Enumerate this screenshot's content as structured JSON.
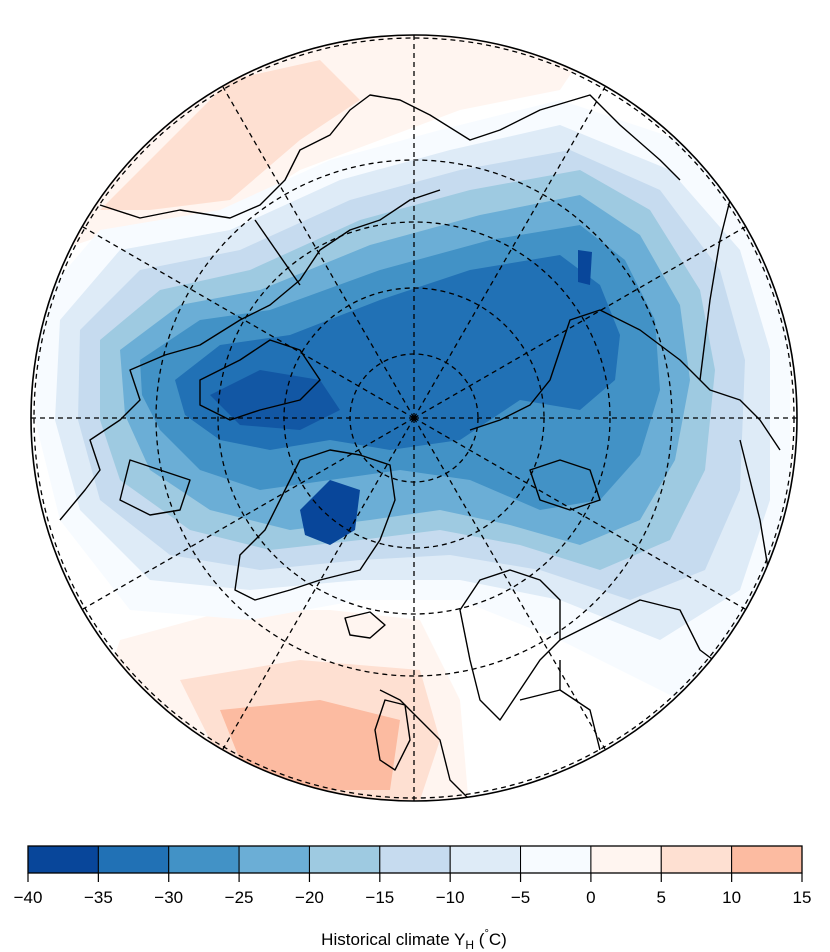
{
  "figure": {
    "projection": "north-polar-stereographic",
    "graticule": "dashed",
    "colorbar": {
      "title_main": "Historical climate Y",
      "title_sub": "H",
      "title_open": " (",
      "title_degree": "°",
      "title_unit": "C)",
      "ticks": [
        "−40",
        "−35",
        "−30",
        "−25",
        "−20",
        "−15",
        "−10",
        "−5",
        "0",
        "5",
        "10",
        "15"
      ],
      "bins": [
        {
          "from": -40,
          "to": -35,
          "color": "#08469a"
        },
        {
          "from": -35,
          "to": -30,
          "color": "#2171b5"
        },
        {
          "from": -30,
          "to": -25,
          "color": "#4292c6"
        },
        {
          "from": -25,
          "to": -20,
          "color": "#6baed6"
        },
        {
          "from": -20,
          "to": -15,
          "color": "#9ecae1"
        },
        {
          "from": -15,
          "to": -10,
          "color": "#c6dbef"
        },
        {
          "from": -10,
          "to": -5,
          "color": "#deebf7"
        },
        {
          "from": -5,
          "to": 0,
          "color": "#f7fbff"
        },
        {
          "from": 0,
          "to": 5,
          "color": "#fff5f0"
        },
        {
          "from": 5,
          "to": 10,
          "color": "#fee0d2"
        },
        {
          "from": 10,
          "to": 15,
          "color": "#fcbba1"
        }
      ]
    }
  }
}
